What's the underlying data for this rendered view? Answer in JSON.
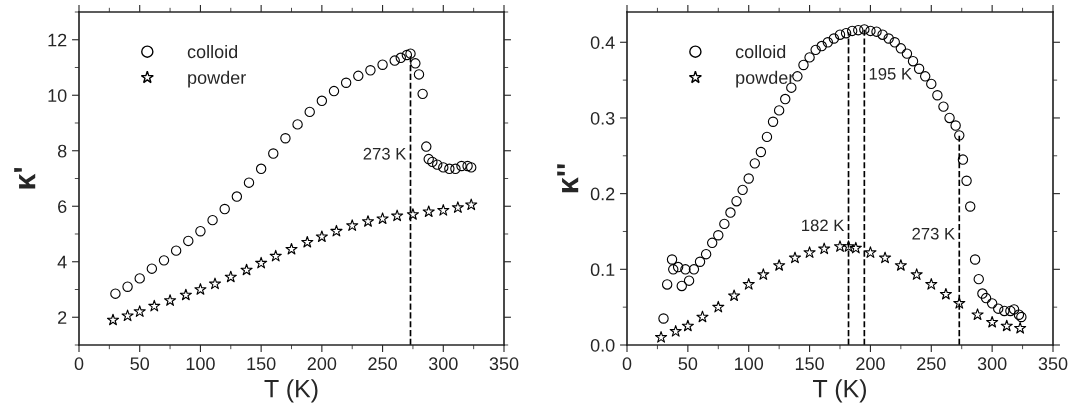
{
  "chart_data": [
    {
      "type": "scatter",
      "xlabel": "T (K)",
      "ylabel": "κ'",
      "xlim": [
        0,
        350
      ],
      "ylim": [
        1,
        13
      ],
      "xticks": [
        0,
        50,
        100,
        150,
        200,
        250,
        300,
        350
      ],
      "yticks": [
        2,
        4,
        6,
        8,
        10,
        12
      ],
      "legend": "top left",
      "grid": false,
      "series": [
        {
          "name": "colloid",
          "color": "#000000",
          "marker": "circle",
          "x": [
            30,
            40,
            50,
            60,
            70,
            80,
            90,
            100,
            110,
            120,
            130,
            140,
            150,
            160,
            170,
            180,
            190,
            200,
            210,
            220,
            230,
            240,
            250,
            260,
            265,
            270,
            273,
            277,
            280,
            283,
            286,
            288,
            291,
            295,
            300,
            305,
            310,
            315,
            320,
            323
          ],
          "values": [
            2.85,
            3.1,
            3.4,
            3.75,
            4.05,
            4.4,
            4.75,
            5.1,
            5.5,
            5.9,
            6.35,
            6.85,
            7.35,
            7.9,
            8.45,
            8.95,
            9.4,
            9.8,
            10.15,
            10.45,
            10.7,
            10.9,
            11.1,
            11.25,
            11.35,
            11.45,
            11.5,
            11.15,
            10.75,
            10.05,
            8.15,
            7.7,
            7.6,
            7.5,
            7.4,
            7.35,
            7.35,
            7.45,
            7.45,
            7.4
          ]
        },
        {
          "name": "powder",
          "color": "#000000",
          "marker": "star",
          "x": [
            28,
            40,
            50,
            62,
            75,
            88,
            100,
            112,
            125,
            138,
            150,
            162,
            175,
            188,
            200,
            212,
            225,
            238,
            250,
            262,
            275,
            288,
            300,
            312,
            323
          ],
          "values": [
            1.9,
            2.05,
            2.2,
            2.4,
            2.6,
            2.8,
            3.0,
            3.2,
            3.45,
            3.7,
            3.95,
            4.2,
            4.45,
            4.7,
            4.9,
            5.1,
            5.3,
            5.45,
            5.55,
            5.65,
            5.7,
            5.8,
            5.85,
            5.95,
            6.05
          ]
        }
      ],
      "ref_lines": [
        {
          "axis": "x",
          "value": 273,
          "line_style": "dashed",
          "color": "#000000",
          "label": "273 K"
        }
      ]
    },
    {
      "type": "scatter",
      "xlabel": "T (K)",
      "ylabel": "κ''",
      "xlim": [
        0,
        350
      ],
      "ylim": [
        0,
        0.44
      ],
      "xticks": [
        0,
        50,
        100,
        150,
        200,
        250,
        300,
        350
      ],
      "yticks": [
        {
          "value": 0,
          "label": "0.0"
        },
        0.1,
        0.2,
        0.3,
        0.4
      ],
      "legend": "top left",
      "grid": false,
      "series": [
        {
          "name": "colloid",
          "color": "#000000",
          "marker": "circle",
          "x": [
            30,
            33,
            37,
            38,
            42,
            45,
            48,
            51,
            55,
            60,
            65,
            70,
            75,
            80,
            85,
            90,
            95,
            100,
            105,
            110,
            115,
            120,
            125,
            130,
            135,
            140,
            145,
            150,
            155,
            160,
            165,
            170,
            175,
            180,
            185,
            190,
            195,
            200,
            205,
            210,
            215,
            220,
            225,
            230,
            235,
            240,
            245,
            250,
            255,
            260,
            265,
            270,
            273,
            276,
            279,
            282,
            286,
            289,
            292,
            295,
            300,
            305,
            310,
            315,
            318,
            322,
            324
          ],
          "values": [
            0.035,
            0.08,
            0.113,
            0.1,
            0.103,
            0.078,
            0.1,
            0.085,
            0.1,
            0.11,
            0.12,
            0.135,
            0.145,
            0.16,
            0.175,
            0.19,
            0.205,
            0.22,
            0.24,
            0.255,
            0.275,
            0.295,
            0.31,
            0.325,
            0.34,
            0.355,
            0.37,
            0.38,
            0.39,
            0.395,
            0.4,
            0.405,
            0.41,
            0.412,
            0.415,
            0.416,
            0.417,
            0.415,
            0.414,
            0.41,
            0.405,
            0.4,
            0.392,
            0.385,
            0.375,
            0.365,
            0.355,
            0.345,
            0.33,
            0.315,
            0.3,
            0.29,
            0.277,
            0.245,
            0.217,
            0.183,
            0.113,
            0.087,
            0.068,
            0.062,
            0.055,
            0.048,
            0.045,
            0.045,
            0.047,
            0.04,
            0.037
          ]
        },
        {
          "name": "powder",
          "color": "#000000",
          "marker": "star",
          "x": [
            28,
            40,
            50,
            62,
            75,
            88,
            100,
            112,
            125,
            138,
            150,
            162,
            175,
            182,
            188,
            200,
            212,
            225,
            238,
            250,
            262,
            273,
            288,
            300,
            312,
            323
          ],
          "values": [
            0.01,
            0.018,
            0.025,
            0.037,
            0.05,
            0.065,
            0.08,
            0.093,
            0.105,
            0.115,
            0.122,
            0.127,
            0.13,
            0.13,
            0.128,
            0.122,
            0.115,
            0.105,
            0.093,
            0.08,
            0.067,
            0.055,
            0.04,
            0.03,
            0.025,
            0.022
          ]
        }
      ],
      "ref_lines": [
        {
          "axis": "x",
          "value": 182,
          "line_style": "dashed",
          "color": "#000000",
          "label": "182 K"
        },
        {
          "axis": "x",
          "value": 195,
          "line_style": "dashed",
          "color": "#000000",
          "label": "195 K"
        },
        {
          "axis": "x",
          "value": 273,
          "line_style": "dashed",
          "color": "#000000",
          "label": "273 K"
        }
      ]
    }
  ]
}
